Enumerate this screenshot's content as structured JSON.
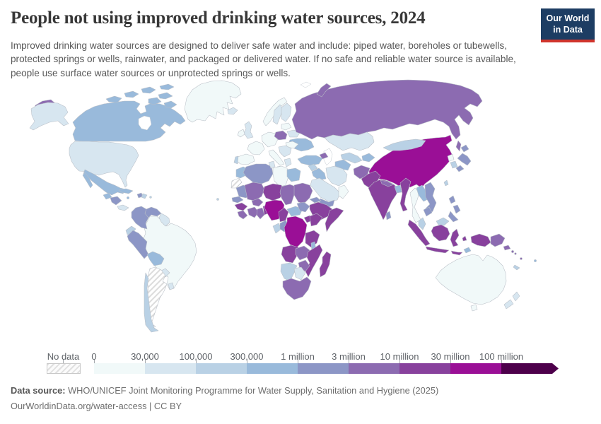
{
  "header": {
    "title": "People not using improved drinking water sources, 2024",
    "subtitle": "Improved drinking water sources are designed to deliver safe water and include: piped water, boreholes or tubewells, protected springs or wells, rainwater, and packaged or delivered water. If no safe and reliable water source is available, people use surface water sources or unprotected springs or wells."
  },
  "logo": {
    "line1": "Our World",
    "line2": "in Data",
    "bg": "#1d3d63",
    "stripe": "#d0342c"
  },
  "legend": {
    "no_data_label": "No data",
    "ticks": [
      "0",
      "30,000",
      "100,000",
      "300,000",
      "1 million",
      "3 million",
      "10 million",
      "30 million",
      "100 million"
    ],
    "bin_colors": [
      "#f1f9f9",
      "#d7e6f0",
      "#b9d1e5",
      "#99badb",
      "#8c96c6",
      "#8c6bb1",
      "#88419d",
      "#9a0f96",
      "#4d004b"
    ]
  },
  "footer": {
    "source_label": "Data source:",
    "source_text": " WHO/UNICEF Joint Monitoring Programme for Water Supply, Sanitation and Hygiene (2025)",
    "license_text": "OurWorldinData.org/water-access | CC BY"
  },
  "chart_data": {
    "type": "heatmap",
    "title": "People not using improved drinking water sources, 2024",
    "legend_position": "bottom",
    "scale_type": "log-binned",
    "bins": [
      "0–30,000",
      "30,000–100,000",
      "100,000–300,000",
      "300,000–1 million",
      "1–3 million",
      "3–10 million",
      "10–30 million",
      "30–100 million",
      "100 million+"
    ],
    "no_data": [
      "Argentina",
      "Western Sahara"
    ]
  },
  "map": {
    "regions": {
      "greenland": 0,
      "canada": 3,
      "united-states": 1,
      "mexico": 3,
      "guatemala": 3,
      "honduras-nicaragua": 4,
      "costa-rica-panama": 1,
      "cuba": 3,
      "jamaica": 3,
      "haiti": 4,
      "dominican-republic": 2,
      "puerto-rico": 2,
      "colombia": 4,
      "venezuela": 4,
      "guyanas": 1,
      "ecuador": 2,
      "peru": 4,
      "brazil": 0,
      "bolivia": 3,
      "paraguay": 1,
      "uruguay": 1,
      "argentina": "no_data",
      "chile": 2,
      "cape-verde": 2,
      "iceland": 1,
      "norway": 0,
      "sweden": 1,
      "finland": 1,
      "united-kingdom": 1,
      "ireland": 0,
      "france": 0,
      "spain": 0,
      "portugal": 2,
      "central-europe": 0,
      "poland": 5,
      "italy": 0,
      "sicily": 1,
      "balkans": 1,
      "greece": 1,
      "romania": 0,
      "baltics": 0,
      "belarus": 1,
      "ukraine": 3,
      "turkey": 3,
      "azerbaijan": 5,
      "russia": 5,
      "kazakhstan": 1,
      "uzbekistan": 2,
      "turkmenistan": 3,
      "kyrgyzstan-tajikistan": 3,
      "syria": 2,
      "iraq": 3,
      "iran": 1,
      "saudi-arabia": 1,
      "yemen": 4,
      "oman": 0,
      "egypt": 3,
      "morocco": 3,
      "western-sahara": "no_data",
      "algeria": 4,
      "tunisia": 1,
      "libya": 0,
      "mauritania": 4,
      "senegal": 4,
      "guinea": 6,
      "sierra-leone-liberia": 5,
      "mali": 5,
      "burkina-faso": 5,
      "cote-divoire": 5,
      "ghana": 5,
      "benin-togo": 6,
      "niger": 6,
      "nigeria": 7,
      "chad": 5,
      "sudan": 5,
      "eritrea": 4,
      "ethiopia": 6,
      "somalia": 6,
      "cameroon": 6,
      "central-african-republic": 3,
      "south-sudan": 4,
      "uganda": 6,
      "kenya": 6,
      "gabon": 2,
      "congo": 4,
      "democratic-republic-of-congo": 7,
      "tanzania": 6,
      "angola": 6,
      "zambia": 5,
      "malawi": 3,
      "mozambique": 6,
      "zimbabwe": 5,
      "namibia": 2,
      "botswana": 1,
      "south-africa": 5,
      "madagascar": 6,
      "afghanistan": 5,
      "pakistan": 6,
      "india": 6,
      "nepal": 5,
      "bangladesh": 3,
      "sri-lanka": 4,
      "china": 7,
      "mongolia": 2,
      "north-korea": 0,
      "south-korea": 2,
      "japan": 4,
      "taiwan": 2,
      "myanmar": 6,
      "thailand": 0,
      "laos": 3,
      "vietnam": 4,
      "cambodia": 4,
      "philippines": 4,
      "malaysia": 2,
      "indonesia": 6,
      "timor-leste": 3,
      "papua-new-guinea": 5,
      "solomon-islands": 5,
      "vanuatu": 5,
      "fiji": 3,
      "new-caledonia": 2,
      "australia": 0,
      "new-zealand": 1
    }
  }
}
